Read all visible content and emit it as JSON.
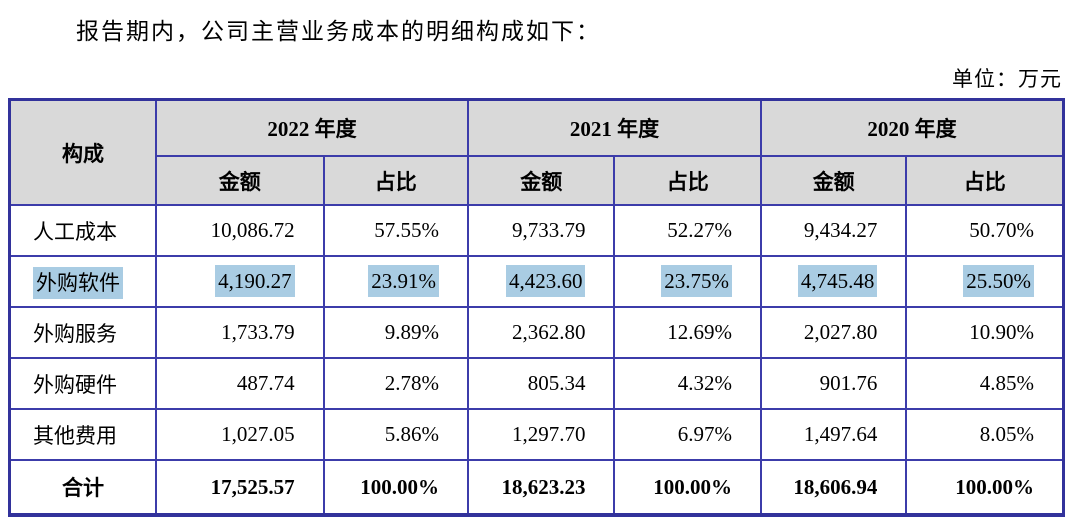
{
  "page": {
    "title": "报告期内，公司主营业务成本的明细构成如下：",
    "unit_label": "单位：万元"
  },
  "colors": {
    "border": "#3c3caa",
    "border_outer": "#32329b",
    "header_bg": "#d9d9d9",
    "highlight": "#a9cce3"
  },
  "table": {
    "corner_header": "构成",
    "year_groups": [
      {
        "label": "2022 年度"
      },
      {
        "label": "2021 年度"
      },
      {
        "label": "2020 年度"
      }
    ],
    "sub_headers": {
      "amount": "金额",
      "ratio": "占比"
    },
    "rows": [
      {
        "name": "人工成本",
        "highlighted": false,
        "cells": [
          "10,086.72",
          "57.55%",
          "9,733.79",
          "52.27%",
          "9,434.27",
          "50.70%"
        ]
      },
      {
        "name": "外购软件",
        "highlighted": true,
        "cells": [
          "4,190.27",
          "23.91%",
          "4,423.60",
          "23.75%",
          "4,745.48",
          "25.50%"
        ]
      },
      {
        "name": "外购服务",
        "highlighted": false,
        "cells": [
          "1,733.79",
          "9.89%",
          "2,362.80",
          "12.69%",
          "2,027.80",
          "10.90%"
        ]
      },
      {
        "name": "外购硬件",
        "highlighted": false,
        "cells": [
          "487.74",
          "2.78%",
          "805.34",
          "4.32%",
          "901.76",
          "4.85%"
        ]
      },
      {
        "name": "其他费用",
        "highlighted": false,
        "cells": [
          "1,027.05",
          "5.86%",
          "1,297.70",
          "6.97%",
          "1,497.64",
          "8.05%"
        ]
      }
    ],
    "total_row": {
      "name": "合计",
      "cells": [
        "17,525.57",
        "100.00%",
        "18,623.23",
        "100.00%",
        "18,606.94",
        "100.00%"
      ]
    }
  }
}
